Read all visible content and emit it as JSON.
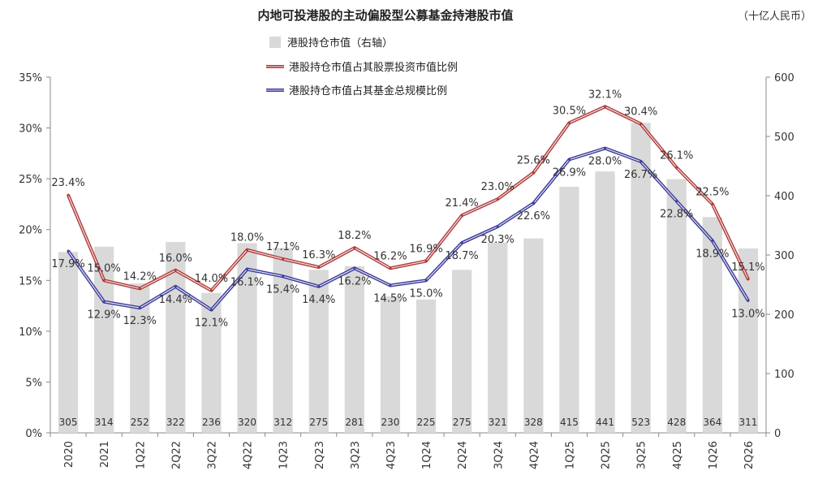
{
  "chart_data": {
    "type": "bar+line",
    "title": "内地可投港股的主动偏股型公募基金持港股市值",
    "unit_label": "（十亿人民币）",
    "categories": [
      "2020",
      "2021",
      "1Q22",
      "2Q22",
      "3Q22",
      "4Q22",
      "1Q23",
      "2Q23",
      "3Q23",
      "4Q23",
      "1Q24",
      "2Q24",
      "3Q24",
      "4Q24",
      "1Q25",
      "2Q25",
      "3Q25",
      "4Q25",
      "1Q26",
      "2Q26"
    ],
    "y_left": {
      "min": 0,
      "max": 35,
      "step": 5,
      "format": "percent"
    },
    "y_right": {
      "min": 0,
      "max": 600,
      "step": 100
    },
    "series": [
      {
        "name": "港股持仓市值（右轴）",
        "type": "bar",
        "axis": "right",
        "color": "#d9d9d9",
        "values": [
          305,
          314,
          252,
          322,
          236,
          320,
          312,
          275,
          281,
          230,
          225,
          275,
          321,
          328,
          415,
          441,
          523,
          428,
          364,
          311
        ],
        "labels": [
          "305",
          "314",
          "252",
          "322",
          "236",
          "320",
          "312",
          "275",
          "281",
          "230",
          "225",
          "275",
          "321",
          "328",
          "415",
          "441",
          "523",
          "428",
          "364",
          "311"
        ]
      },
      {
        "name": "港股持仓市值占其股票投资市值比例",
        "type": "line",
        "axis": "left",
        "color": "#b03a3a",
        "values": [
          23.4,
          15.0,
          14.2,
          16.0,
          14.0,
          18.0,
          17.1,
          16.3,
          18.2,
          16.2,
          16.9,
          21.4,
          23.0,
          25.6,
          30.5,
          32.1,
          30.4,
          26.1,
          22.5,
          15.1
        ],
        "labels": [
          "23.4%",
          "15.0%",
          "14.2%",
          "16.0%",
          "14.0%",
          "18.0%",
          "17.1%",
          "16.3%",
          "18.2%",
          "16.2%",
          "16.9%",
          "21.4%",
          "23.0%",
          "25.6%",
          "30.5%",
          "32.1%",
          "30.4%",
          "26.1%",
          "22.5%",
          "15.1%"
        ]
      },
      {
        "name": "港股持仓市值占其基金总规模比例",
        "type": "line",
        "axis": "left",
        "color": "#3c3c9c",
        "values": [
          17.9,
          12.9,
          12.3,
          14.4,
          12.1,
          16.1,
          15.4,
          14.4,
          16.2,
          14.5,
          15.0,
          18.7,
          20.3,
          22.6,
          26.9,
          28.0,
          26.7,
          22.8,
          18.9,
          13.0
        ],
        "labels": [
          "17.9%",
          "12.9%",
          "12.3%",
          "14.4%",
          "12.1%",
          "16.1%",
          "15.4%",
          "14.4%",
          "16.2%",
          "14.5%",
          "15.0%",
          "18.7%",
          "20.3%",
          "22.6%",
          "26.9%",
          "28.0%",
          "26.7%",
          "22.8%",
          "18.9%",
          "13.0%"
        ]
      }
    ],
    "grid": false,
    "legend_position": "top-center"
  }
}
